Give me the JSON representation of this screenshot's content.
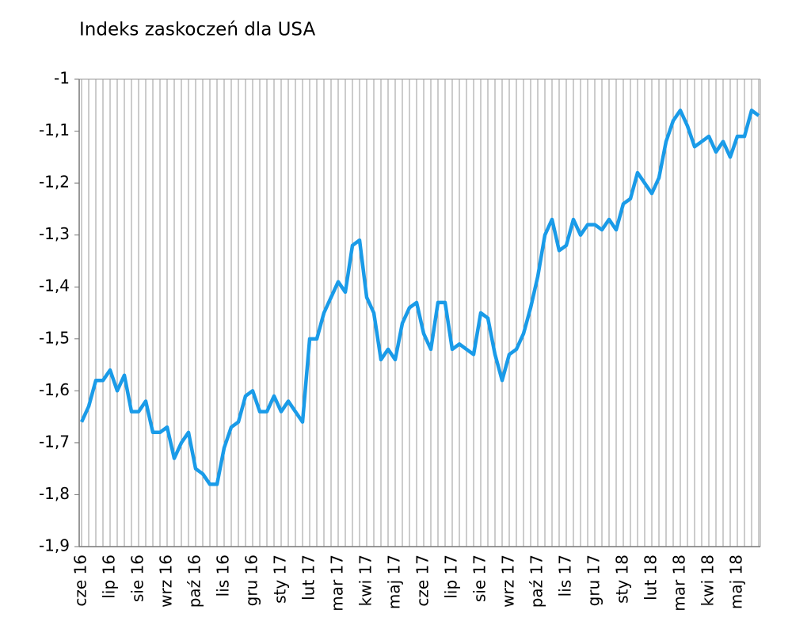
{
  "chart_data": {
    "type": "line",
    "title": "Indeks zaskoczeń dla USA",
    "categories": [
      "cze 16",
      null,
      null,
      null,
      "lip 16",
      null,
      null,
      null,
      "sie 16",
      null,
      null,
      null,
      "wrz 16",
      null,
      null,
      null,
      "paź 16",
      null,
      null,
      null,
      "lis 16",
      null,
      null,
      null,
      "gru 16",
      null,
      null,
      null,
      "sty 17",
      null,
      null,
      null,
      "lut 17",
      null,
      null,
      null,
      "mar 17",
      null,
      null,
      null,
      "kwi 17",
      null,
      null,
      null,
      "maj 17",
      null,
      null,
      null,
      "cze 17",
      null,
      null,
      null,
      "lip 17",
      null,
      null,
      null,
      "sie 17",
      null,
      null,
      null,
      "wrz 17",
      null,
      null,
      null,
      "paź 17",
      null,
      null,
      null,
      "lis 17",
      null,
      null,
      null,
      "gru 17",
      null,
      null,
      null,
      "sty 18",
      null,
      null,
      null,
      "lut 18",
      null,
      null,
      null,
      "mar 18",
      null,
      null,
      null,
      "kwi 18",
      null,
      null,
      null,
      "maj 18",
      null,
      null,
      null
    ],
    "series": [
      {
        "color": "#1a9be8",
        "values": [
          -1.66,
          -1.63,
          -1.58,
          -1.58,
          -1.56,
          -1.6,
          -1.57,
          -1.64,
          -1.64,
          -1.62,
          -1.68,
          -1.68,
          -1.67,
          -1.73,
          -1.7,
          -1.68,
          -1.75,
          -1.76,
          -1.78,
          -1.78,
          -1.71,
          -1.67,
          -1.66,
          -1.61,
          -1.6,
          -1.64,
          -1.64,
          -1.61,
          -1.64,
          -1.62,
          -1.64,
          -1.66,
          -1.5,
          -1.5,
          -1.45,
          -1.42,
          -1.39,
          -1.41,
          -1.32,
          -1.31,
          -1.42,
          -1.45,
          -1.54,
          -1.52,
          -1.54,
          -1.47,
          -1.44,
          -1.43,
          -1.49,
          -1.52,
          -1.43,
          -1.43,
          -1.52,
          -1.51,
          -1.52,
          -1.53,
          -1.45,
          -1.46,
          -1.53,
          -1.58,
          -1.53,
          -1.52,
          -1.49,
          -1.44,
          -1.38,
          -1.3,
          -1.27,
          -1.33,
          -1.32,
          -1.27,
          -1.3,
          -1.28,
          -1.28,
          -1.29,
          -1.27,
          -1.29,
          -1.24,
          -1.23,
          -1.18,
          -1.2,
          -1.22,
          -1.19,
          -1.12,
          -1.08,
          -1.06,
          -1.09,
          -1.13,
          -1.12,
          -1.11,
          -1.14,
          -1.12,
          -1.15,
          -1.11,
          -1.11,
          -1.06,
          -1.07
        ]
      }
    ],
    "ylim": [
      -1.9,
      -1
    ],
    "yticks": [
      {
        "value": -1.9,
        "label": "-1,9"
      },
      {
        "value": -1.8,
        "label": "-1,8"
      },
      {
        "value": -1.7,
        "label": "-1,7"
      },
      {
        "value": -1.6,
        "label": "-1,6"
      },
      {
        "value": -1.5,
        "label": "-1,5"
      },
      {
        "value": -1.4,
        "label": "-1,4"
      },
      {
        "value": -1.3,
        "label": "-1,3"
      },
      {
        "value": -1.2,
        "label": "-1,2"
      },
      {
        "value": -1.1,
        "label": "-1,1"
      },
      {
        "value": -1,
        "label": "-1"
      }
    ],
    "xgrid": true
  }
}
